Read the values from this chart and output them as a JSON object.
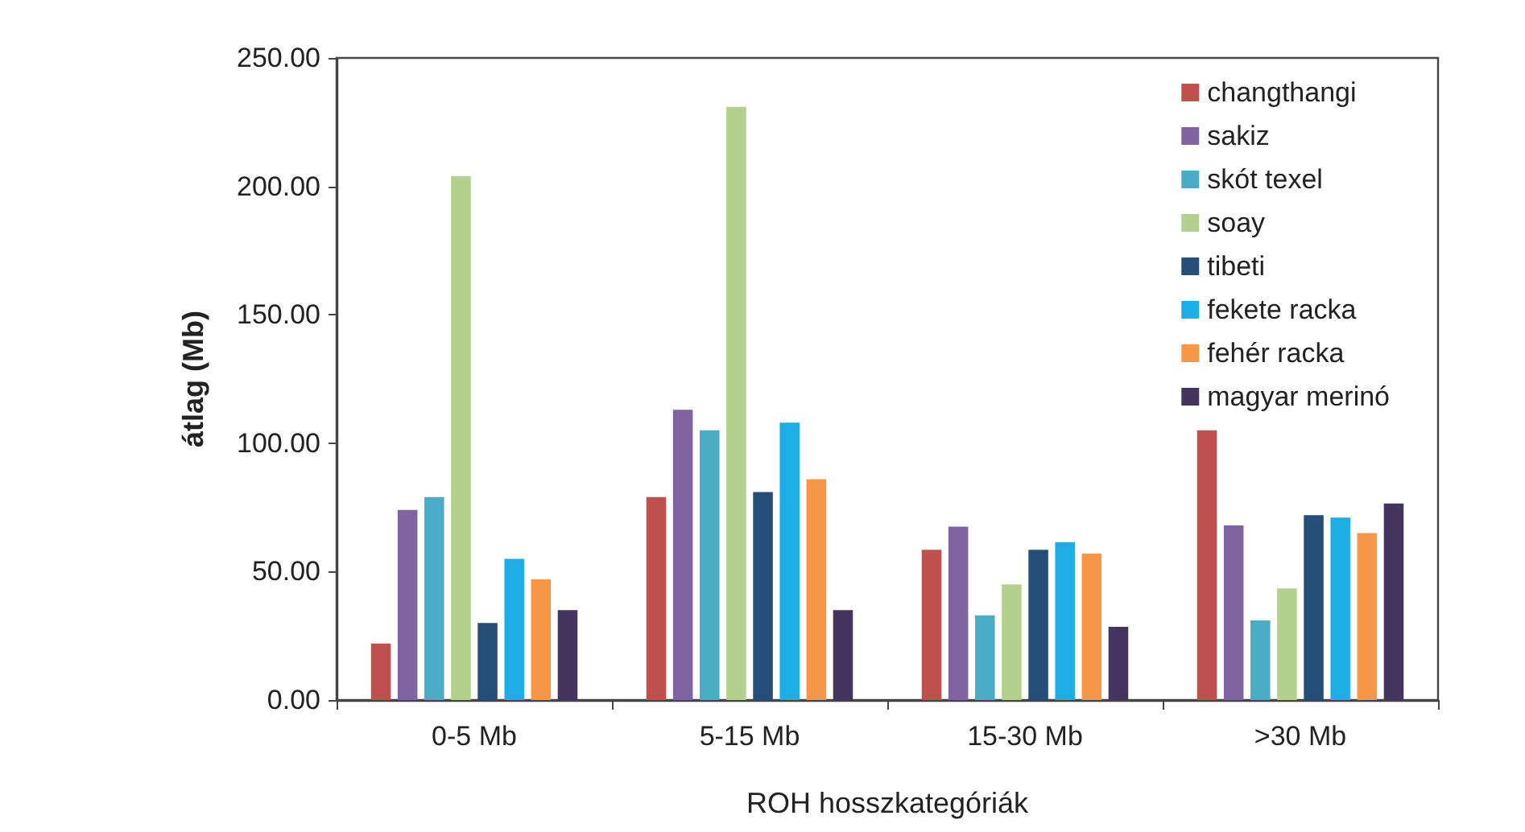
{
  "chart_data": {
    "type": "bar",
    "xlabel": "ROH hosszkategóriák",
    "ylabel": "átlag (Mb)",
    "categories": [
      "0-5 Mb",
      "5-15 Mb",
      "15-30 Mb",
      ">30 Mb"
    ],
    "series": [
      {
        "name": "changthangi",
        "color": "#c0504d",
        "values": [
          22,
          79,
          58.5,
          105
        ]
      },
      {
        "name": "sakiz",
        "color": "#8064a2",
        "values": [
          74,
          113,
          67.5,
          68
        ]
      },
      {
        "name": "skót texel",
        "color": "#4bacc6",
        "values": [
          79,
          105,
          33,
          31
        ]
      },
      {
        "name": "soay",
        "color": "#b3d08e",
        "values": [
          204,
          231,
          45,
          43.5
        ]
      },
      {
        "name": "tibeti",
        "color": "#254e78",
        "values": [
          30,
          81,
          58.5,
          72
        ]
      },
      {
        "name": "fekete racka",
        "color": "#1eaee6",
        "values": [
          55,
          108,
          61.5,
          71
        ]
      },
      {
        "name": "fehér racka",
        "color": "#f79646",
        "values": [
          47,
          86,
          57,
          65
        ]
      },
      {
        "name": "magyar merinó",
        "color": "#45345e",
        "values": [
          35,
          35,
          28.5,
          76.5
        ]
      }
    ],
    "ylim": [
      0,
      250
    ],
    "yticks": [
      {
        "value": 0,
        "label": "0.00"
      },
      {
        "value": 50,
        "label": "50.00"
      },
      {
        "value": 100,
        "label": "100.00"
      },
      {
        "value": 150,
        "label": "150.00"
      },
      {
        "value": 200,
        "label": "200.00"
      },
      {
        "value": 250,
        "label": "250.00"
      }
    ],
    "legend": "top right"
  }
}
